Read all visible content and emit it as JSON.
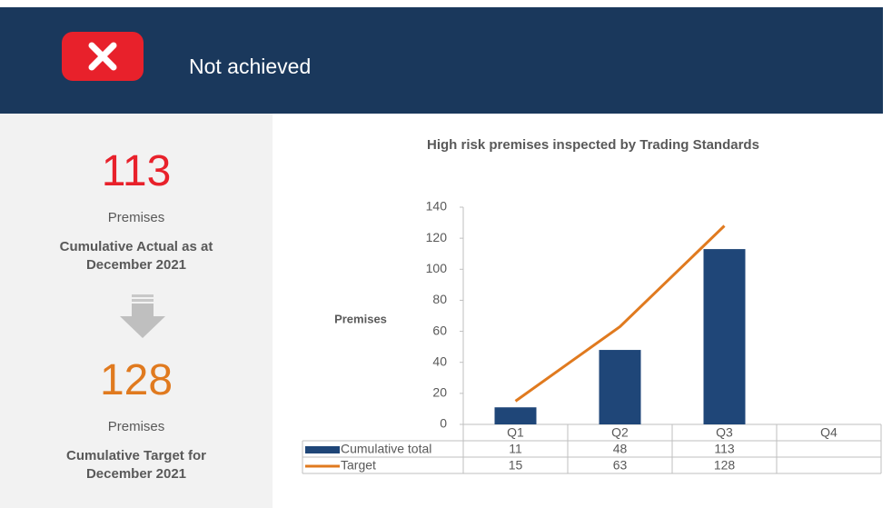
{
  "header": {
    "status": "Not achieved"
  },
  "summary": {
    "actual": {
      "value": "113",
      "unit": "Premises",
      "caption_line1": "Cumulative Actual as at",
      "caption_line2": "December 2021"
    },
    "target": {
      "value": "128",
      "unit": "Premises",
      "caption_line1": "Cumulative Target for",
      "caption_line2": "December 2021"
    }
  },
  "chart_data": {
    "type": "bar",
    "title": "High risk premises inspected by Trading Standards",
    "y_label": "Premises",
    "categories": [
      "Q1",
      "Q2",
      "Q3",
      "Q4"
    ],
    "series": [
      {
        "name": "Cumulative total",
        "type": "bar",
        "color": "#1f4678",
        "values": [
          11,
          48,
          113,
          null
        ]
      },
      {
        "name": "Target",
        "type": "line",
        "color": "#e07a1f",
        "values": [
          15,
          63,
          128,
          null
        ]
      }
    ],
    "ylim": [
      0,
      140
    ],
    "yticks": [
      0,
      20,
      40,
      60,
      80,
      100,
      120,
      140
    ]
  }
}
